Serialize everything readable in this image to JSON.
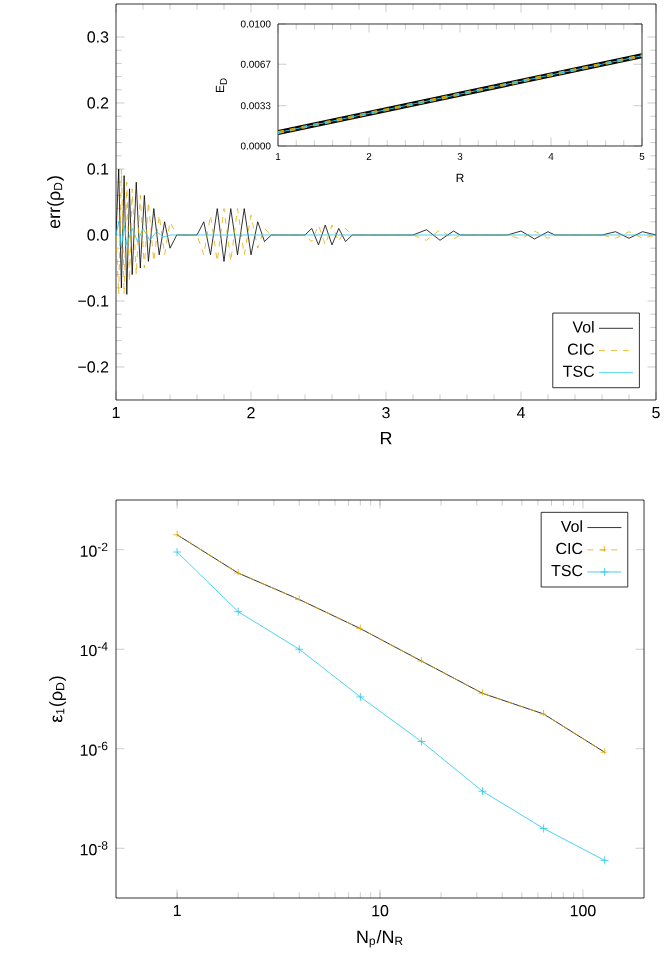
{
  "chart_data": [
    {
      "type": "line",
      "xlabel": "R",
      "ylabel": "err(ρ$_{D}$)",
      "xlim": [
        1,
        5
      ],
      "ylim": [
        -0.25,
        0.35
      ],
      "xticks": [
        1,
        2,
        3,
        4,
        5
      ],
      "yticks": [
        {
          "value": -0.2,
          "label": "−0.2"
        },
        {
          "value": -0.1,
          "label": "−0.1"
        },
        {
          "value": 0,
          "label": "0.0"
        },
        {
          "value": 0.1,
          "label": "0.1"
        },
        {
          "value": 0.2,
          "label": "0.2"
        },
        {
          "value": 0.3,
          "label": "0.3"
        }
      ],
      "legend": "bottom right",
      "series": [
        {
          "name": "Vol",
          "color": "#000000",
          "line_style": "solid",
          "x": [
            1.0,
            1.02,
            1.04,
            1.06,
            1.08,
            1.1,
            1.12,
            1.15,
            1.18,
            1.21,
            1.24,
            1.28,
            1.32,
            1.36,
            1.4,
            1.45,
            1.6,
            1.65,
            1.7,
            1.75,
            1.8,
            1.85,
            1.9,
            1.95,
            2.0,
            2.05,
            2.1,
            2.15,
            2.4,
            2.45,
            2.5,
            2.55,
            2.6,
            2.65,
            2.7,
            2.75,
            3.2,
            3.3,
            3.4,
            3.5,
            3.55,
            3.9,
            4.0,
            4.1,
            4.2,
            4.25,
            4.6,
            4.7,
            4.8,
            4.9,
            5.0
          ],
          "values": [
            0,
            0.1,
            -0.08,
            0.09,
            -0.09,
            0.07,
            -0.06,
            0.08,
            -0.05,
            0.06,
            -0.04,
            0.04,
            -0.03,
            0.02,
            -0.02,
            0,
            0,
            0.02,
            -0.03,
            0.04,
            -0.04,
            0.04,
            -0.03,
            0.04,
            -0.03,
            0.02,
            -0.01,
            0,
            0,
            0.01,
            -0.015,
            0.015,
            -0.015,
            0.01,
            -0.01,
            0,
            0,
            0.008,
            -0.008,
            0.006,
            0,
            0,
            0.006,
            -0.006,
            0.005,
            0,
            0,
            0.005,
            -0.005,
            0.005,
            0
          ]
        },
        {
          "name": "CIC",
          "color": "#e8a800",
          "line_style": "dashed",
          "x": [
            1.0,
            1.02,
            1.04,
            1.06,
            1.08,
            1.1,
            1.12,
            1.15,
            1.18,
            1.21,
            1.24,
            1.28,
            1.32,
            1.36,
            1.4,
            1.45,
            1.6,
            1.65,
            1.7,
            1.75,
            1.8,
            1.85,
            1.9,
            1.95,
            2.0,
            2.05,
            2.1,
            2.15,
            2.4,
            2.45,
            2.5,
            2.55,
            2.6,
            2.65,
            2.7,
            2.75,
            3.2,
            3.3,
            3.4,
            3.5,
            3.55,
            3.9,
            4.0,
            4.1,
            4.2,
            4.25,
            4.6,
            4.7,
            4.8,
            4.9,
            5.0
          ],
          "values": [
            0,
            -0.09,
            0.1,
            -0.09,
            0.08,
            -0.07,
            0.07,
            -0.06,
            0.06,
            -0.05,
            0.05,
            -0.04,
            0.03,
            -0.03,
            0.02,
            0,
            0,
            -0.03,
            0.03,
            -0.04,
            0.04,
            -0.04,
            0.04,
            -0.03,
            0.03,
            -0.02,
            0.01,
            0,
            0,
            -0.01,
            0.015,
            -0.015,
            0.015,
            -0.01,
            0.01,
            0,
            0,
            -0.008,
            0.008,
            -0.006,
            0,
            0,
            -0.006,
            0.006,
            -0.005,
            0,
            0,
            -0.005,
            0.005,
            -0.005,
            0
          ]
        },
        {
          "name": "TSC",
          "color": "#1ec8f0",
          "line_style": "solid",
          "x": [
            1.0,
            1.02,
            1.04,
            1.06,
            1.08,
            1.12,
            1.16,
            1.2,
            1.25,
            1.3,
            1.35,
            1.4,
            5.0
          ],
          "values": [
            0,
            0.02,
            -0.02,
            0.015,
            -0.015,
            0.01,
            -0.01,
            0.01,
            -0.008,
            0.005,
            -0.003,
            0,
            0
          ]
        }
      ]
    },
    {
      "type": "line",
      "xlabel": "R",
      "ylabel": "E$_{D}$",
      "xlim": [
        1,
        5
      ],
      "ylim": [
        0,
        0.01
      ],
      "xticks": [
        1,
        2,
        3,
        4,
        5
      ],
      "yticks": [
        {
          "value": 0,
          "label": "0.0000"
        },
        {
          "value": 0.0033,
          "label": "0.0033"
        },
        {
          "value": 0.0067,
          "label": "0.0067"
        },
        {
          "value": 0.01,
          "label": "0.0100"
        }
      ],
      "series": [
        {
          "color": "#000000",
          "line_style": "solid",
          "x": [
            1,
            5
          ],
          "values": [
            0.0011,
            0.0074
          ]
        },
        {
          "color": "#e8a800",
          "line_style": "dashed",
          "x": [
            1,
            5
          ],
          "values": [
            0.0011,
            0.0074
          ]
        },
        {
          "color": "#1ec8f0",
          "line_style": "solid",
          "x": [
            1,
            5
          ],
          "values": [
            0.0011,
            0.0074
          ]
        }
      ]
    },
    {
      "type": "line",
      "xlabel": "N$_{p}$/N$_{R}$",
      "ylabel": "ε$_{1}$(ρ$_{D}$)",
      "log": "xy",
      "xlim": [
        0.5,
        200
      ],
      "ylim": [
        1e-09,
        0.1
      ],
      "xticks": [
        1,
        10,
        100
      ],
      "yticks": [
        {
          "value": 0.01,
          "label": "10$^{-2}$"
        },
        {
          "value": 0.0001,
          "label": "10$^{-4}$"
        },
        {
          "value": 1e-06,
          "label": "10$^{-6}$"
        },
        {
          "value": 1e-08,
          "label": "10$^{-8}$"
        }
      ],
      "legend": "top right",
      "series": [
        {
          "name": "Vol",
          "color": "#000000",
          "line_style": "solid",
          "marker": "none",
          "x": [
            1,
            2,
            4,
            8,
            16,
            32,
            64,
            128
          ],
          "values": [
            0.02,
            0.0034,
            0.001,
            0.00026,
            5.8e-05,
            1.3e-05,
            5e-06,
            8.5e-07
          ]
        },
        {
          "name": "CIC",
          "color": "#e8a800",
          "line_style": "dashed",
          "marker": "cross",
          "x": [
            1,
            2,
            4,
            8,
            16,
            32,
            64,
            128
          ],
          "values": [
            0.02,
            0.0034,
            0.001,
            0.00026,
            5.8e-05,
            1.3e-05,
            5e-06,
            8.5e-07
          ]
        },
        {
          "name": "TSC",
          "color": "#1ec8f0",
          "line_style": "solid",
          "marker": "cross",
          "x": [
            1,
            2,
            4,
            8,
            16,
            32,
            64,
            128
          ],
          "values": [
            0.009,
            0.00057,
            0.0001,
            1.1e-05,
            1.4e-06,
            1.4e-07,
            2.5e-08,
            5.7e-09
          ]
        }
      ]
    }
  ]
}
